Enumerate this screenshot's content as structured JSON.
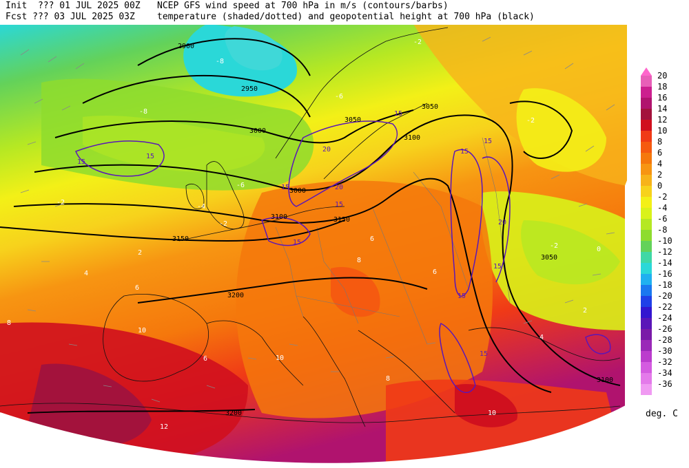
{
  "header": {
    "init": "Init  ??? 01 JUL 2025 00Z",
    "fcst": "Fcst ??? 03 JUL 2025 03Z",
    "title1": "NCEP GFS wind speed at 700 hPa in m/s (contours/barbs)",
    "title2": "temperature (shaded/dotted) and geopotential height at 700 hPa (black)"
  },
  "colorbar": {
    "unit": "deg. C",
    "labels": [
      "20",
      "18",
      "16",
      "14",
      "12",
      "10",
      "8",
      "6",
      "4",
      "2",
      "0",
      "-2",
      "-4",
      "-6",
      "-8",
      "-10",
      "-12",
      "-14",
      "-16",
      "-18",
      "-20",
      "-22",
      "-24",
      "-26",
      "-28",
      "-30",
      "-32",
      "-34",
      "-36"
    ],
    "colors": [
      "#e85fb8",
      "#cc1f8f",
      "#b0136e",
      "#a3123c",
      "#d0101e",
      "#f03a16",
      "#f55a10",
      "#f5780c",
      "#f79512",
      "#f7b31a",
      "#f7d21c",
      "#f3f017",
      "#d9f21a",
      "#b5e823",
      "#8edc2e",
      "#63d25a",
      "#3fd8a5",
      "#2ad8d8",
      "#1fb0f0",
      "#1a78f0",
      "#2040e8",
      "#3316d0",
      "#5a16b8",
      "#7a1aa8",
      "#9a28b8",
      "#bb3ccd",
      "#d45be0",
      "#e47aea",
      "#f09af2"
    ],
    "arrow_color": "#ff66cc"
  },
  "map": {
    "height_contours": [
      "2900",
      "2950",
      "3000",
      "3050",
      "3100",
      "3150",
      "3200"
    ],
    "height_labels": [
      {
        "text": "2900"
      },
      {
        "text": "2950"
      },
      {
        "text": "3000"
      },
      {
        "text": "3050"
      },
      {
        "text": "3100"
      },
      {
        "text": "3150"
      },
      {
        "text": "3150"
      },
      {
        "text": "3100"
      },
      {
        "text": "3200"
      },
      {
        "text": "3200"
      },
      {
        "text": "3050"
      },
      {
        "text": "3100"
      },
      {
        "text": "3050"
      },
      {
        "text": "3000"
      }
    ],
    "wind_labels": [
      "15",
      "15",
      "20",
      "15",
      "20",
      "15",
      "15",
      "15",
      "15",
      "20",
      "15",
      "15",
      "15",
      "15"
    ],
    "temp_labels": [
      "-8",
      "-8",
      "-6",
      "-6",
      "-4",
      "-2",
      "-2",
      "-2",
      "2",
      "4",
      "6",
      "8",
      "10",
      "10",
      "12",
      "-2",
      "-2",
      "0",
      "6",
      "8",
      "6",
      "10",
      "4",
      "2",
      "6",
      "8"
    ]
  }
}
